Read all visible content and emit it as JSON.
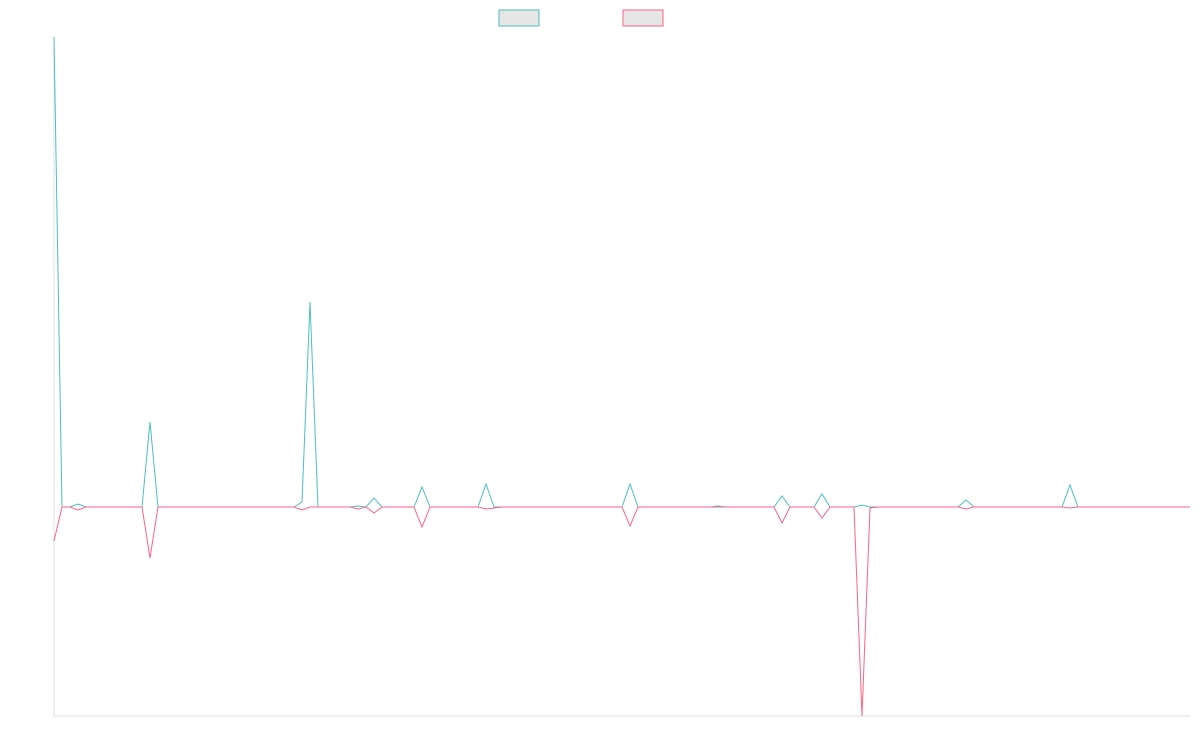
{
  "chart_data": {
    "type": "line",
    "series": [
      {
        "color": "#4bc0c0",
        "values": [
          470,
          0,
          0,
          3,
          0,
          0,
          0,
          0,
          0,
          0,
          0,
          0,
          85,
          0,
          0,
          0,
          0,
          0,
          0,
          0,
          0,
          0,
          0,
          0,
          0,
          0,
          0,
          0,
          0,
          0,
          0,
          5,
          205,
          0,
          0,
          0,
          0,
          0,
          1,
          0,
          9,
          0,
          0,
          0,
          0,
          0,
          20,
          0,
          0,
          0,
          0,
          0,
          0,
          0,
          23,
          0,
          0,
          0,
          0,
          0,
          0,
          0,
          0,
          0,
          0,
          0,
          0,
          0,
          0,
          0,
          0,
          0,
          23,
          0,
          0,
          0,
          0,
          0,
          0,
          0,
          0,
          0,
          0,
          1,
          0,
          0,
          0,
          0,
          0,
          0,
          0,
          11,
          0,
          0,
          0,
          0,
          13,
          0,
          0,
          0,
          0,
          2,
          0,
          0,
          0,
          0,
          0,
          0,
          0,
          0,
          0,
          0,
          0,
          0,
          7,
          0,
          0,
          0,
          0,
          0,
          0,
          0,
          0,
          0,
          0,
          0,
          0,
          22,
          0,
          0,
          0,
          0,
          0,
          0,
          0,
          0,
          0,
          0,
          0,
          0,
          0,
          0,
          0
        ]
      },
      {
        "color": "#ff6384",
        "values": [
          -34,
          0,
          0,
          -3,
          0,
          0,
          0,
          0,
          0,
          0,
          0,
          0,
          -51,
          0,
          0,
          0,
          0,
          0,
          0,
          0,
          0,
          0,
          0,
          0,
          0,
          0,
          0,
          0,
          0,
          0,
          0,
          -3,
          0,
          0,
          0,
          0,
          0,
          0,
          -2,
          0,
          -6,
          0,
          0,
          0,
          0,
          0,
          -20,
          0,
          0,
          0,
          0,
          0,
          0,
          0,
          -2,
          -1,
          0,
          0,
          0,
          0,
          0,
          0,
          0,
          0,
          0,
          0,
          0,
          0,
          0,
          0,
          0,
          0,
          -19,
          0,
          0,
          0,
          0,
          0,
          0,
          0,
          0,
          0,
          0,
          0,
          0,
          0,
          0,
          0,
          0,
          0,
          0,
          -16,
          0,
          0,
          0,
          0,
          -11,
          0,
          0,
          0,
          0,
          -209,
          -1,
          0,
          0,
          0,
          0,
          0,
          0,
          0,
          0,
          0,
          0,
          0,
          -2,
          0,
          0,
          0,
          0,
          0,
          0,
          0,
          0,
          0,
          0,
          0,
          0,
          -1,
          0,
          0,
          0,
          0,
          0,
          0,
          0,
          0,
          0,
          0,
          0,
          0,
          0,
          0,
          0
        ]
      }
    ],
    "ylim": [
      -209,
      470
    ],
    "legend": "top"
  }
}
